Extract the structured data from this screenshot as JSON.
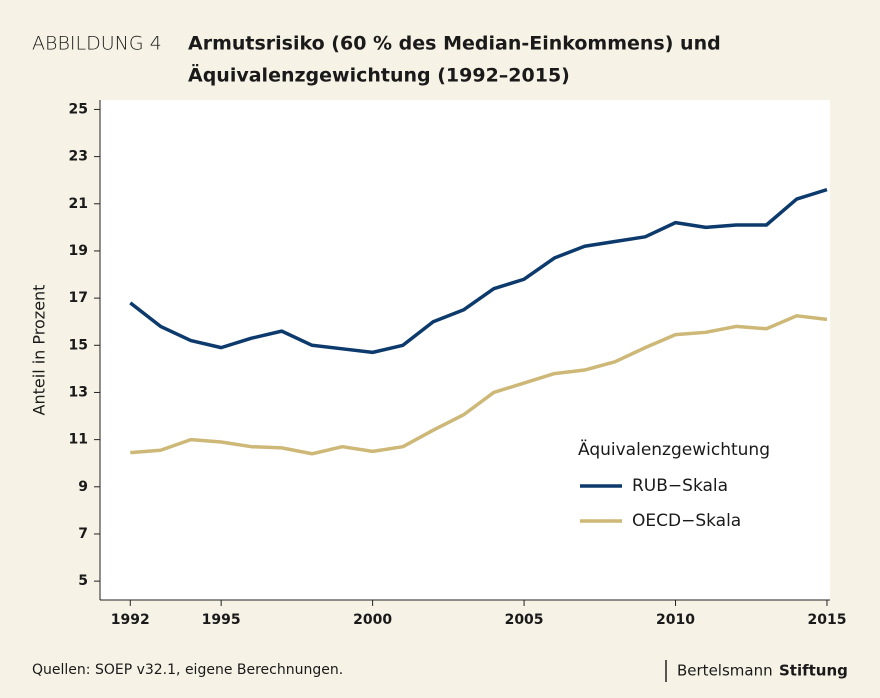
{
  "chart_data": {
    "type": "line",
    "figure_label": "ABBILDUNG 4",
    "title_lines": [
      "Armutsrisiko (60 % des Median-Einkommens) und",
      "Äquivalenzgewichtung (1992–2015)"
    ],
    "y_label": "Anteil in Prozent",
    "x": [
      1992,
      1993,
      1994,
      1995,
      1996,
      1997,
      1998,
      1999,
      2000,
      2001,
      2002,
      2003,
      2004,
      2005,
      2006,
      2007,
      2008,
      2009,
      2010,
      2011,
      2012,
      2013,
      2014,
      2015
    ],
    "series": [
      {
        "name": "RUB−Skala",
        "color": "#0d3a6c",
        "values": [
          16.8,
          15.8,
          15.2,
          14.9,
          15.3,
          15.6,
          15.0,
          14.85,
          14.7,
          15.0,
          16.0,
          16.5,
          17.4,
          17.8,
          18.7,
          19.2,
          19.4,
          19.6,
          20.2,
          20.0,
          20.1,
          20.1,
          21.2,
          21.6
        ]
      },
      {
        "name": "OECD−Skala",
        "color": "#cdb877",
        "values": [
          10.45,
          10.55,
          11.0,
          10.9,
          10.7,
          10.65,
          10.4,
          10.7,
          10.5,
          10.7,
          11.4,
          12.05,
          13.0,
          13.4,
          13.8,
          13.95,
          14.3,
          14.9,
          15.45,
          15.55,
          15.8,
          15.7,
          16.25,
          16.1
        ]
      }
    ],
    "xlim": [
      1991,
      2015.1
    ],
    "xticks": [
      1992,
      1995,
      2000,
      2005,
      2010,
      2015
    ],
    "ylim": [
      4.2,
      25.4
    ],
    "yticks": [
      5,
      7,
      9,
      11,
      13,
      15,
      17,
      19,
      21,
      23,
      25
    ],
    "legend_title": "Äquivalenzgewichtung",
    "legend_position": "lower-right",
    "source": "Quellen: SOEP v32.1, eigene Berechnungen.",
    "logo": [
      "Bertelsmann",
      "Stiftung"
    ]
  }
}
